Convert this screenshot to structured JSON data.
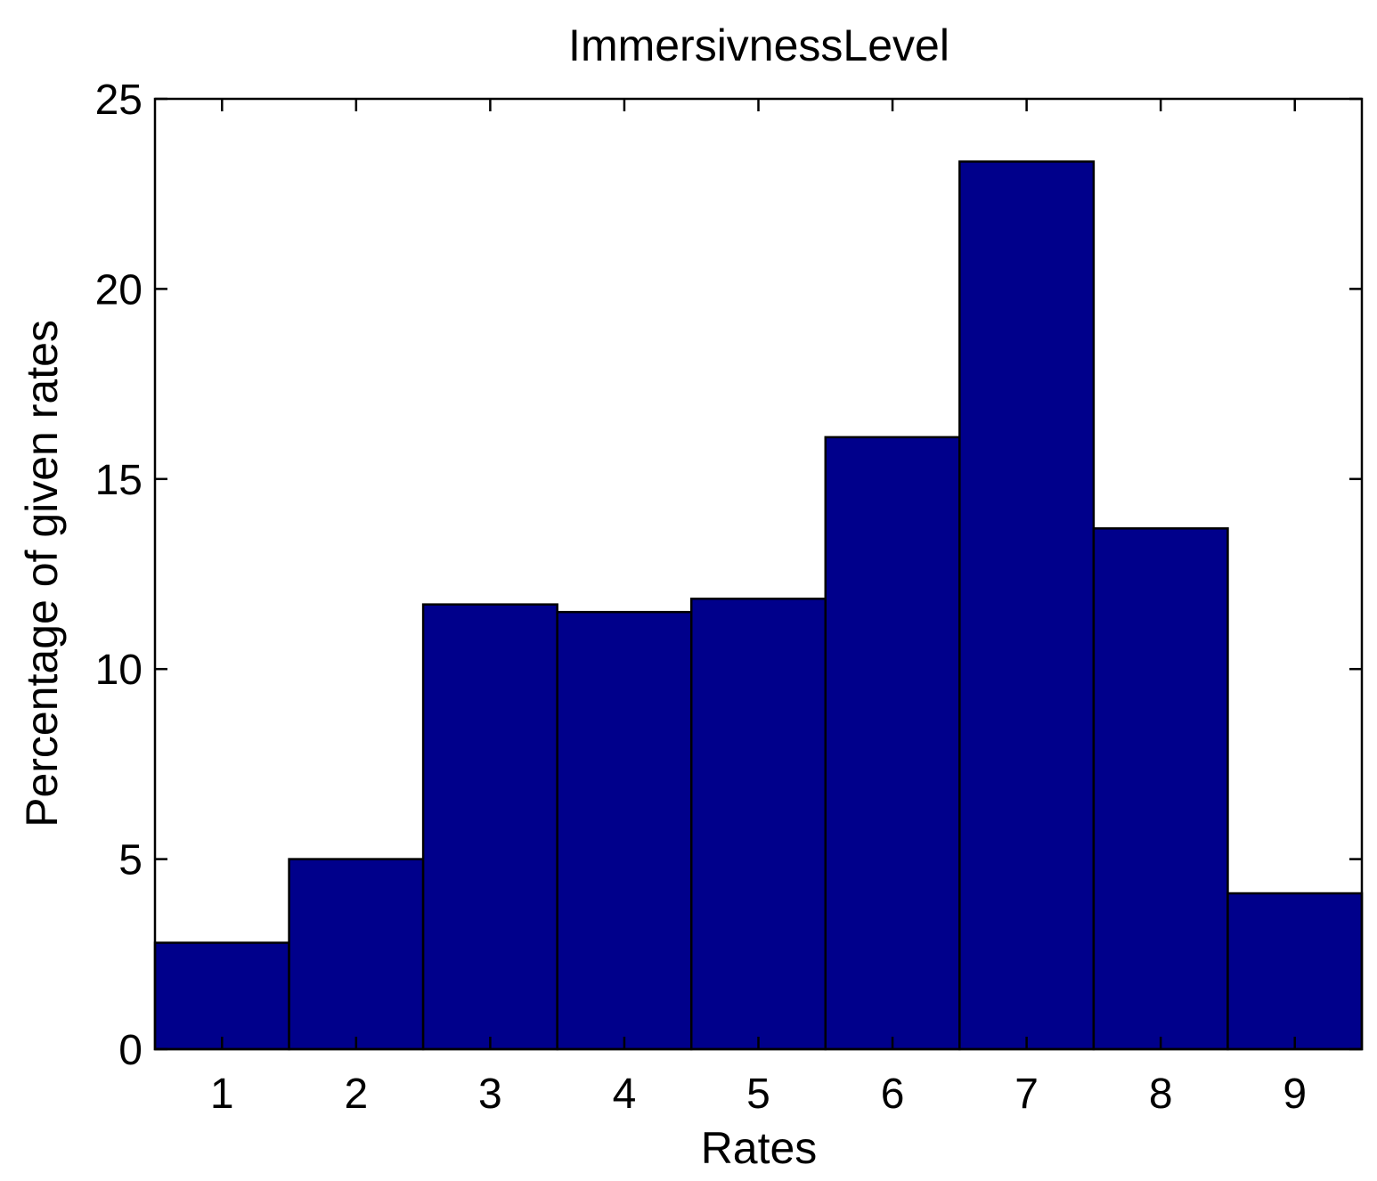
{
  "chart_data": {
    "type": "bar",
    "title": "ImmersivnessLevel",
    "xlabel": "Rates",
    "ylabel": "Percentage of given rates",
    "categories": [
      "1",
      "2",
      "3",
      "4",
      "5",
      "6",
      "7",
      "8",
      "9"
    ],
    "values": [
      2.8,
      5.0,
      11.7,
      11.5,
      11.85,
      16.1,
      23.35,
      13.7,
      4.1
    ],
    "ylim": [
      0,
      25
    ],
    "yticks": [
      "0",
      "5",
      "10",
      "15",
      "20",
      "25"
    ],
    "grid": false,
    "legend": "none",
    "bar_color": "#00008B",
    "edge_color": "#000000"
  }
}
